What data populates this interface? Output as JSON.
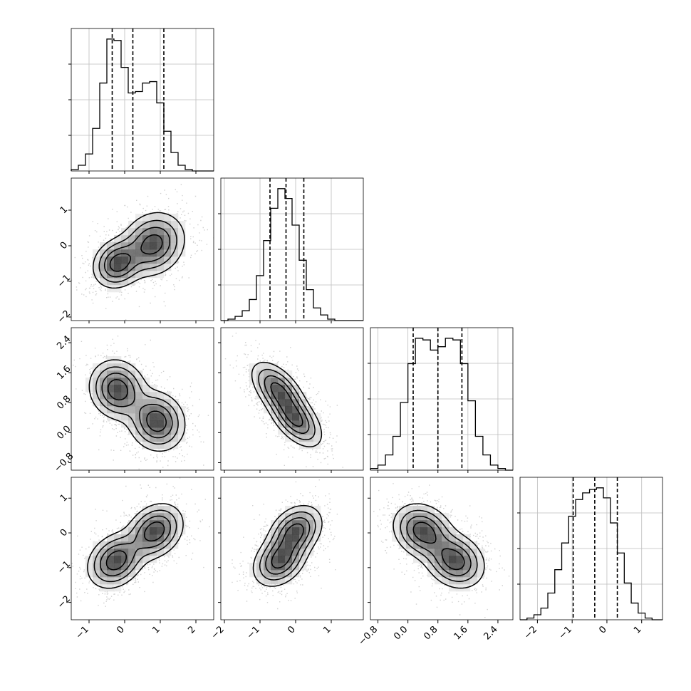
{
  "chart_data": {
    "type": "corner",
    "variables": 4,
    "quantile_lines": "dashed",
    "grid": true,
    "marginals": [
      {
        "index": 0,
        "xlim": [
          -1.5,
          2.5
        ],
        "bins": [
          -1.5,
          -1.3,
          -1.1,
          -0.9,
          -0.7,
          -0.5,
          -0.3,
          -0.1,
          0.1,
          0.3,
          0.5,
          0.7,
          0.9,
          1.1,
          1.3,
          1.5,
          1.7,
          1.9,
          2.1,
          2.3,
          2.5
        ],
        "counts": [
          0.01,
          0.04,
          0.12,
          0.3,
          0.62,
          0.93,
          0.92,
          0.73,
          0.55,
          0.56,
          0.62,
          0.63,
          0.48,
          0.28,
          0.13,
          0.04,
          0.01,
          0.0,
          0.0,
          0.0
        ],
        "quantiles": [
          -0.35,
          0.23,
          1.1
        ]
      },
      {
        "index": 1,
        "xlim": [
          -2.1,
          1.9
        ],
        "bins": [
          -2.1,
          -1.9,
          -1.7,
          -1.5,
          -1.3,
          -1.1,
          -0.9,
          -0.7,
          -0.5,
          -0.3,
          -0.1,
          0.1,
          0.3,
          0.5,
          0.7,
          0.9,
          1.1,
          1.3,
          1.5,
          1.7,
          1.9
        ],
        "counts": [
          0.0,
          0.01,
          0.03,
          0.07,
          0.15,
          0.32,
          0.57,
          0.8,
          0.94,
          0.87,
          0.68,
          0.43,
          0.22,
          0.09,
          0.04,
          0.01,
          0.0,
          0.0,
          0.0,
          0.0
        ],
        "quantiles": [
          -0.72,
          -0.27,
          0.23
        ]
      },
      {
        "index": 2,
        "xlim": [
          -1.0,
          2.8
        ],
        "bins": [
          -1.0,
          -0.8,
          -0.6,
          -0.4,
          -0.2,
          0.0,
          0.2,
          0.4,
          0.6,
          0.8,
          1.0,
          1.2,
          1.4,
          1.6,
          1.8,
          2.0,
          2.2,
          2.4,
          2.6,
          2.8
        ],
        "counts": [
          0.01,
          0.03,
          0.09,
          0.2,
          0.4,
          0.63,
          0.78,
          0.77,
          0.71,
          0.73,
          0.78,
          0.77,
          0.63,
          0.41,
          0.2,
          0.09,
          0.03,
          0.01,
          0.0
        ],
        "quantiles": [
          0.14,
          0.8,
          1.44
        ]
      },
      {
        "index": 3,
        "xlim": [
          -2.5,
          1.6
        ],
        "bins": [
          -2.5,
          -2.3,
          -2.1,
          -1.9,
          -1.7,
          -1.5,
          -1.3,
          -1.1,
          -0.9,
          -0.7,
          -0.5,
          -0.3,
          -0.1,
          0.1,
          0.3,
          0.5,
          0.7,
          0.9,
          1.1,
          1.3,
          1.6
        ],
        "counts": [
          0.0,
          0.01,
          0.03,
          0.07,
          0.16,
          0.3,
          0.46,
          0.62,
          0.72,
          0.76,
          0.78,
          0.79,
          0.73,
          0.58,
          0.4,
          0.22,
          0.1,
          0.04,
          0.01,
          0.0
        ],
        "quantiles": [
          -0.97,
          -0.35,
          0.3
        ]
      }
    ],
    "joints": [
      {
        "row": 1,
        "col": 0,
        "x_var": 0,
        "y_var": 1,
        "modes": [
          [
            -0.2,
            -0.5,
            0.35
          ],
          [
            0.8,
            0.05,
            0.45
          ]
        ],
        "corr": 0.15
      },
      {
        "row": 2,
        "col": 0,
        "x_var": 0,
        "y_var": 2,
        "modes": [
          [
            -0.2,
            1.15,
            0.4
          ],
          [
            0.9,
            0.3,
            0.4
          ]
        ],
        "corr": -0.1
      },
      {
        "row": 2,
        "col": 1,
        "x_var": 1,
        "y_var": 2,
        "modes": [
          [
            -0.5,
            1.15,
            0.38
          ],
          [
            0.0,
            0.35,
            0.38
          ]
        ],
        "corr": -0.55
      },
      {
        "row": 3,
        "col": 0,
        "x_var": 0,
        "y_var": 3,
        "modes": [
          [
            -0.25,
            -0.8,
            0.4
          ],
          [
            0.85,
            0.05,
            0.4
          ]
        ],
        "corr": 0.25
      },
      {
        "row": 3,
        "col": 1,
        "x_var": 1,
        "y_var": 3,
        "modes": [
          [
            -0.45,
            -0.8,
            0.38
          ],
          [
            0.0,
            0.05,
            0.38
          ]
        ],
        "corr": 0.3
      },
      {
        "row": 3,
        "col": 2,
        "x_var": 2,
        "y_var": 3,
        "modes": [
          [
            0.4,
            0.05,
            0.4
          ],
          [
            1.25,
            -0.8,
            0.4
          ]
        ],
        "corr": -0.2
      }
    ],
    "ticks": {
      "x": [
        {
          "values": [
            -1,
            0,
            1,
            2
          ],
          "labels": [
            "−1",
            "0",
            "1",
            "2"
          ]
        },
        {
          "values": [
            -2,
            -1,
            0,
            1
          ],
          "labels": [
            "−2",
            "−1",
            "0",
            "1"
          ]
        },
        {
          "values": [
            -0.8,
            0.0,
            0.8,
            1.6,
            2.4
          ],
          "labels": [
            "−0.8",
            "0.0",
            "0.8",
            "1.6",
            "2.4"
          ]
        },
        {
          "values": [
            -2,
            -1,
            0,
            1
          ],
          "labels": [
            "−2",
            "−1",
            "0",
            "1"
          ]
        }
      ],
      "y": [
        {
          "row": 1,
          "values": [
            1,
            0,
            -1,
            -2
          ],
          "labels": [
            "1",
            "0",
            "−1",
            "−2"
          ]
        },
        {
          "row": 2,
          "values": [
            2.4,
            1.6,
            0.8,
            0.0,
            -0.8
          ],
          "labels": [
            "2.4",
            "1.6",
            "0.8",
            "0.0",
            "−0.8"
          ]
        },
        {
          "row": 3,
          "values": [
            1,
            0,
            -1,
            -2
          ],
          "labels": [
            "1",
            "0",
            "−1",
            "−2"
          ]
        }
      ]
    },
    "ylims": {
      "1": [
        -2.1,
        1.9
      ],
      "2": [
        -1.0,
        2.8
      ],
      "3": [
        -2.5,
        1.6
      ]
    }
  }
}
